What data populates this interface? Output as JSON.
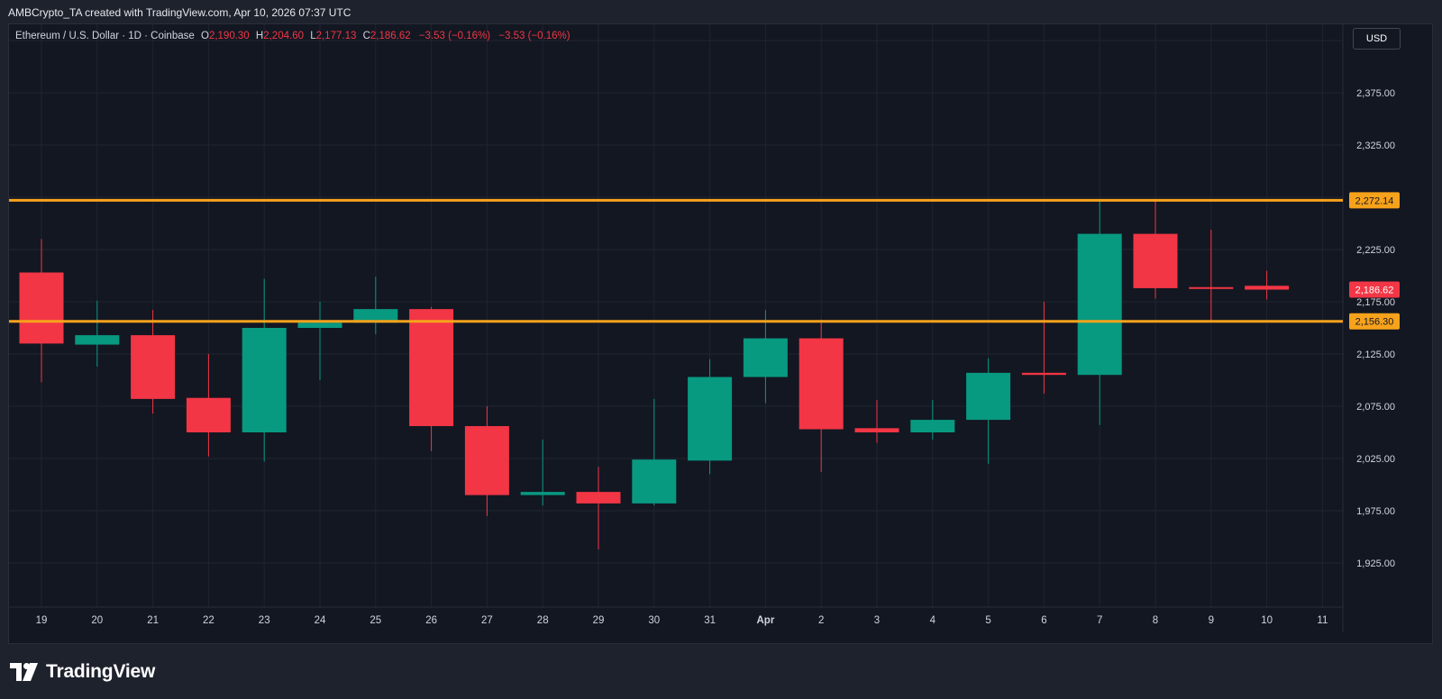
{
  "header": {
    "credit": "AMBCrypto_TA created with TradingView.com, Apr 10, 2026 07:37 UTC"
  },
  "legend": {
    "symbol": "Ethereum / U.S. Dollar · 1D · Coinbase",
    "open_label": "O",
    "open": "2,190.30",
    "high_label": "H",
    "high": "2,204.60",
    "low_label": "L",
    "low": "2,177.13",
    "close_label": "C",
    "close": "2,186.62",
    "change": "−3.53 (−0.16%)",
    "change2": "−3.53 (−0.16%)"
  },
  "toolbar": {
    "currency": "USD"
  },
  "branding": {
    "logo": "tradingview-logo",
    "name": "TradingView"
  },
  "colors": {
    "up": "#089981",
    "down": "#f23645",
    "level": "#f7a21b",
    "background": "#131722",
    "grid": "#1f2430"
  },
  "chart_data": {
    "type": "candlestick",
    "y_axis_ticks": [
      {
        "value": 1925,
        "label": "1,925.00"
      },
      {
        "value": 1975,
        "label": "1,975.00"
      },
      {
        "value": 2025,
        "label": "2,025.00"
      },
      {
        "value": 2075,
        "label": "2,075.00"
      },
      {
        "value": 2125,
        "label": "2,125.00"
      },
      {
        "value": 2175,
        "label": "2,175.00"
      },
      {
        "value": 2225,
        "label": "2,225.00"
      },
      {
        "value": 2325,
        "label": "2,325.00"
      },
      {
        "value": 2375,
        "label": "2,375.00"
      }
    ],
    "x_axis_labels": [
      "19",
      "20",
      "21",
      "22",
      "23",
      "24",
      "25",
      "26",
      "27",
      "28",
      "29",
      "30",
      "31",
      "Apr",
      "2",
      "3",
      "4",
      "5",
      "6",
      "7",
      "8",
      "9",
      "10",
      "11"
    ],
    "candles": [
      {
        "date": "19",
        "open": 2203,
        "high": 2235,
        "low": 2098,
        "close": 2135
      },
      {
        "date": "20",
        "open": 2134,
        "high": 2176,
        "low": 2113,
        "close": 2143
      },
      {
        "date": "21",
        "open": 2143,
        "high": 2167,
        "low": 2068,
        "close": 2082
      },
      {
        "date": "22",
        "open": 2083,
        "high": 2125,
        "low": 2027,
        "close": 2050
      },
      {
        "date": "23",
        "open": 2050,
        "high": 2197,
        "low": 2022,
        "close": 2150
      },
      {
        "date": "24",
        "open": 2150,
        "high": 2175,
        "low": 2100,
        "close": 2155
      },
      {
        "date": "25",
        "open": 2155,
        "high": 2199,
        "low": 2144,
        "close": 2168
      },
      {
        "date": "26",
        "open": 2168,
        "high": 2170,
        "low": 2032,
        "close": 2056
      },
      {
        "date": "27",
        "open": 2056,
        "high": 2075,
        "low": 1970,
        "close": 1990
      },
      {
        "date": "28",
        "open": 1990,
        "high": 2043,
        "low": 1980,
        "close": 1993
      },
      {
        "date": "29",
        "open": 1993,
        "high": 2017,
        "low": 1938,
        "close": 1982
      },
      {
        "date": "30",
        "open": 1982,
        "high": 2082,
        "low": 1980,
        "close": 2024
      },
      {
        "date": "31",
        "open": 2023,
        "high": 2120,
        "low": 2010,
        "close": 2103
      },
      {
        "date": "Apr",
        "open": 2103,
        "high": 2167,
        "low": 2078,
        "close": 2140
      },
      {
        "date": "2",
        "open": 2140,
        "high": 2158,
        "low": 2012,
        "close": 2053
      },
      {
        "date": "3",
        "open": 2054,
        "high": 2081,
        "low": 2040,
        "close": 2050
      },
      {
        "date": "4",
        "open": 2050,
        "high": 2081,
        "low": 2043,
        "close": 2062
      },
      {
        "date": "5",
        "open": 2062,
        "high": 2121,
        "low": 2020,
        "close": 2107
      },
      {
        "date": "6",
        "open": 2107,
        "high": 2175,
        "low": 2087,
        "close": 2105
      },
      {
        "date": "7",
        "open": 2105,
        "high": 2271,
        "low": 2057,
        "close": 2240
      },
      {
        "date": "8",
        "open": 2240,
        "high": 2271,
        "low": 2178,
        "close": 2188
      },
      {
        "date": "9",
        "open": 2189,
        "high": 2244,
        "low": 2155,
        "close": 2188
      },
      {
        "date": "10",
        "open": 2190.3,
        "high": 2204.6,
        "low": 2177.13,
        "close": 2186.62
      }
    ],
    "horizontal_levels": [
      {
        "value": 2272.14,
        "label": "2,272.14"
      },
      {
        "value": 2156.3,
        "label": "2,156.30"
      }
    ],
    "last_price": {
      "value": 2186.62,
      "label": "2,186.62"
    },
    "grid": true
  }
}
